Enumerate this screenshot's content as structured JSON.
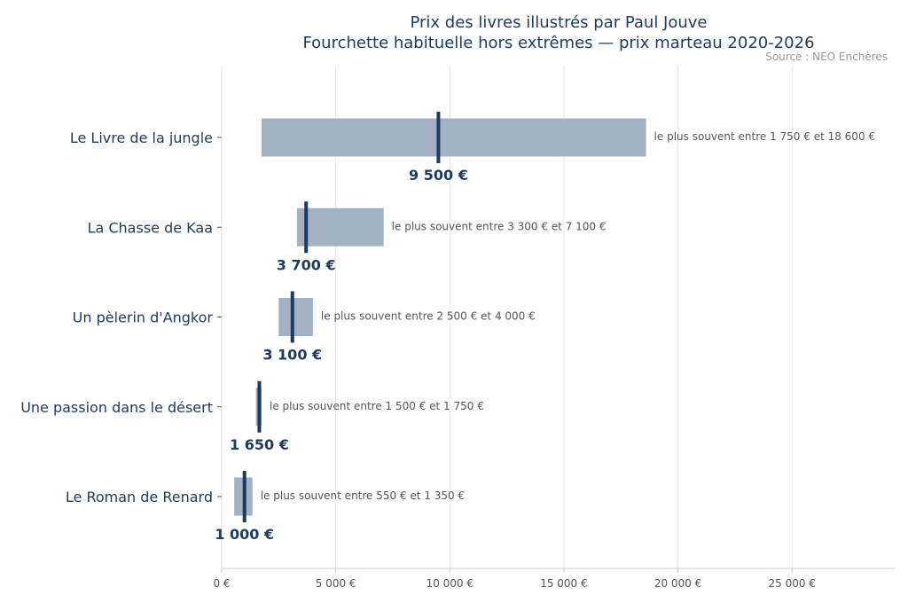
{
  "chart_data": {
    "type": "bar",
    "title": "Prix des livres illustrés par Paul Jouve",
    "subtitle": "Fourchette habituelle hors extrêmes — prix marteau 2020-2026",
    "source": "Source : NEO Enchères",
    "xlim": [
      0,
      29500
    ],
    "xticks": [
      {
        "value": 0,
        "label": "0 €"
      },
      {
        "value": 5000,
        "label": "5 000 €"
      },
      {
        "value": 10000,
        "label": "10 000 €"
      },
      {
        "value": 15000,
        "label": "15 000 €"
      },
      {
        "value": 20000,
        "label": "20 000 €"
      },
      {
        "value": 25000,
        "label": "25 000 €"
      }
    ],
    "grid": true,
    "categories": [
      "Le Livre de la jungle",
      "La Chasse de Kaa",
      "Un pèlerin d'Angkor",
      "Une passion dans le désert",
      "Le Roman de Renard"
    ],
    "series": [
      {
        "low": 1750,
        "high": 18600,
        "median": 9500,
        "median_label": "9 500 €",
        "range_label": "le plus souvent entre 1 750 € et 18 600 €"
      },
      {
        "low": 3300,
        "high": 7100,
        "median": 3700,
        "median_label": "3 700 €",
        "range_label": "le plus souvent entre 3 300 € et 7 100 €"
      },
      {
        "low": 2500,
        "high": 4000,
        "median": 3100,
        "median_label": "3 100 €",
        "range_label": "le plus souvent entre 2 500 € et 4 000 €"
      },
      {
        "low": 1500,
        "high": 1750,
        "median": 1650,
        "median_label": "1 650 €",
        "range_label": "le plus souvent entre 1 500 € et 1 750 €"
      },
      {
        "low": 550,
        "high": 1350,
        "median": 1000,
        "median_label": "1 000 €",
        "range_label": "le plus souvent entre 550 € et 1 350 €"
      }
    ],
    "colors": {
      "bar": "#a3b1c4",
      "median": "#1f3a5f",
      "text": "#1f3a5f"
    }
  }
}
